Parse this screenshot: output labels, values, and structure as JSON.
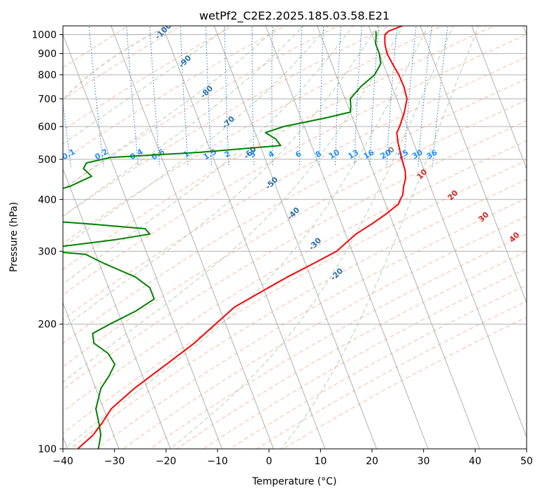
{
  "chart_data": {
    "type": "skew-t",
    "title": "wetPf2_C2E2.2025.185.03.58.E21",
    "xlabel": "Temperature (°C)",
    "ylabel": "Pressure (hPa)",
    "xlim": [
      -40,
      50
    ],
    "ylim": [
      1050,
      100
    ],
    "y_scale": "log",
    "x_ticks": [
      "−40",
      "−30",
      "−20",
      "−10",
      "0",
      "10",
      "20",
      "30",
      "40",
      "50"
    ],
    "y_ticks": [
      "100",
      "200",
      "300",
      "400",
      "500",
      "600",
      "700",
      "800",
      "900",
      "1000"
    ],
    "grid": true,
    "series": [
      {
        "role": "temperature",
        "color": "#ff0000",
        "points": [
          [
            1050,
            26.5
          ],
          [
            1020,
            23.5
          ],
          [
            1000,
            22.5
          ],
          [
            950,
            21.8
          ],
          [
            900,
            21.5
          ],
          [
            850,
            21.8
          ],
          [
            800,
            22.2
          ],
          [
            750,
            22.3
          ],
          [
            700,
            22.0
          ],
          [
            650,
            20.5
          ],
          [
            600,
            18.5
          ],
          [
            580,
            17.5
          ],
          [
            550,
            17.0
          ],
          [
            500,
            16.5
          ],
          [
            470,
            16.3
          ],
          [
            450,
            15.8
          ],
          [
            430,
            14.8
          ],
          [
            410,
            14.0
          ],
          [
            400,
            13.2
          ],
          [
            390,
            12.5
          ],
          [
            370,
            9.5
          ],
          [
            350,
            6.0
          ],
          [
            330,
            2.0
          ],
          [
            300,
            -3.0
          ],
          [
            280,
            -8.5
          ],
          [
            260,
            -14.5
          ],
          [
            240,
            -20.5
          ],
          [
            220,
            -27.0
          ],
          [
            200,
            -32.0
          ],
          [
            180,
            -37.5
          ],
          [
            160,
            -44.5
          ],
          [
            140,
            -52.5
          ],
          [
            125,
            -58.5
          ],
          [
            115,
            -61.5
          ],
          [
            108,
            -64.0
          ],
          [
            100,
            -68.0
          ]
        ]
      },
      {
        "role": "dewpoint",
        "color": "#008000",
        "points": [
          [
            1020,
            21.0
          ],
          [
            1000,
            20.8
          ],
          [
            950,
            20.0
          ],
          [
            900,
            20.0
          ],
          [
            850,
            19.5
          ],
          [
            800,
            17.5
          ],
          [
            750,
            14.0
          ],
          [
            700,
            11.0
          ],
          [
            670,
            10.5
          ],
          [
            650,
            10.0
          ],
          [
            630,
            5.0
          ],
          [
            600,
            -4.0
          ],
          [
            580,
            -8.0
          ],
          [
            560,
            -6.5
          ],
          [
            540,
            -6.0
          ],
          [
            520,
            -22.0
          ],
          [
            505,
            -40.0
          ],
          [
            490,
            -45.0
          ],
          [
            475,
            -46.0
          ],
          [
            455,
            -45.0
          ],
          [
            440,
            -48.0
          ],
          [
            430,
            -50.0
          ],
          [
            400,
            -60.0
          ],
          [
            370,
            -63.0
          ],
          [
            360,
            -63.5
          ],
          [
            350,
            -50.0
          ],
          [
            340,
            -38.5
          ],
          [
            330,
            -38.0
          ],
          [
            320,
            -45.0
          ],
          [
            305,
            -59.0
          ],
          [
            300,
            -59.0
          ],
          [
            295,
            -52.0
          ],
          [
            280,
            -49.0
          ],
          [
            260,
            -44.0
          ],
          [
            245,
            -42.0
          ],
          [
            230,
            -42.0
          ],
          [
            215,
            -46.5
          ],
          [
            200,
            -52.5
          ],
          [
            190,
            -56.5
          ],
          [
            180,
            -57.0
          ],
          [
            170,
            -55.0
          ],
          [
            160,
            -54.5
          ],
          [
            150,
            -56.5
          ],
          [
            140,
            -59.0
          ],
          [
            125,
            -61.5
          ],
          [
            115,
            -62.0
          ],
          [
            108,
            -62.5
          ],
          [
            100,
            -64.0
          ]
        ]
      }
    ],
    "isotherm_step_c": 10,
    "dry_adiabat_theta_c": [
      -30,
      -20,
      -10,
      0,
      10,
      20,
      30,
      40,
      50,
      60,
      70,
      80,
      90,
      100,
      110,
      120,
      130,
      140,
      150,
      160,
      170,
      180,
      190,
      200
    ],
    "moist_adiabat_labels_c": [
      -100,
      -90,
      -80,
      -70,
      -60,
      -50,
      -40,
      -30,
      -20
    ],
    "moist_adiabats_c": [
      -10,
      0,
      5,
      10,
      15,
      20,
      25,
      30,
      35,
      40
    ],
    "mixing_ratio_labels_gkg": [
      "0.1",
      "0.2",
      "0.4",
      "0.6",
      "1",
      "1.5",
      "2",
      "3",
      "4",
      "6",
      "8",
      "10",
      "13",
      "16",
      "20",
      "25",
      "30",
      "36"
    ],
    "lcl_temp_labels": [
      {
        "text": "0",
        "T": 0,
        "color": "#808080"
      },
      {
        "text": "10",
        "T": 10,
        "color": "#d62728"
      },
      {
        "text": "20",
        "T": 20,
        "color": "#d62728"
      },
      {
        "text": "30",
        "T": 30,
        "color": "#d62728"
      },
      {
        "text": "40",
        "T": 40,
        "color": "#d62728"
      }
    ],
    "colors": {
      "grid": "#b0b0b0",
      "dry_adiabat": "#ffa07a",
      "moist_adiabat": "#8fbc8f",
      "mixing_ratio": "#1f77d4",
      "moist_label": "#2a6fa8",
      "mixing_label": "#1f8fff",
      "tan_curve": "#d2b48c"
    }
  }
}
